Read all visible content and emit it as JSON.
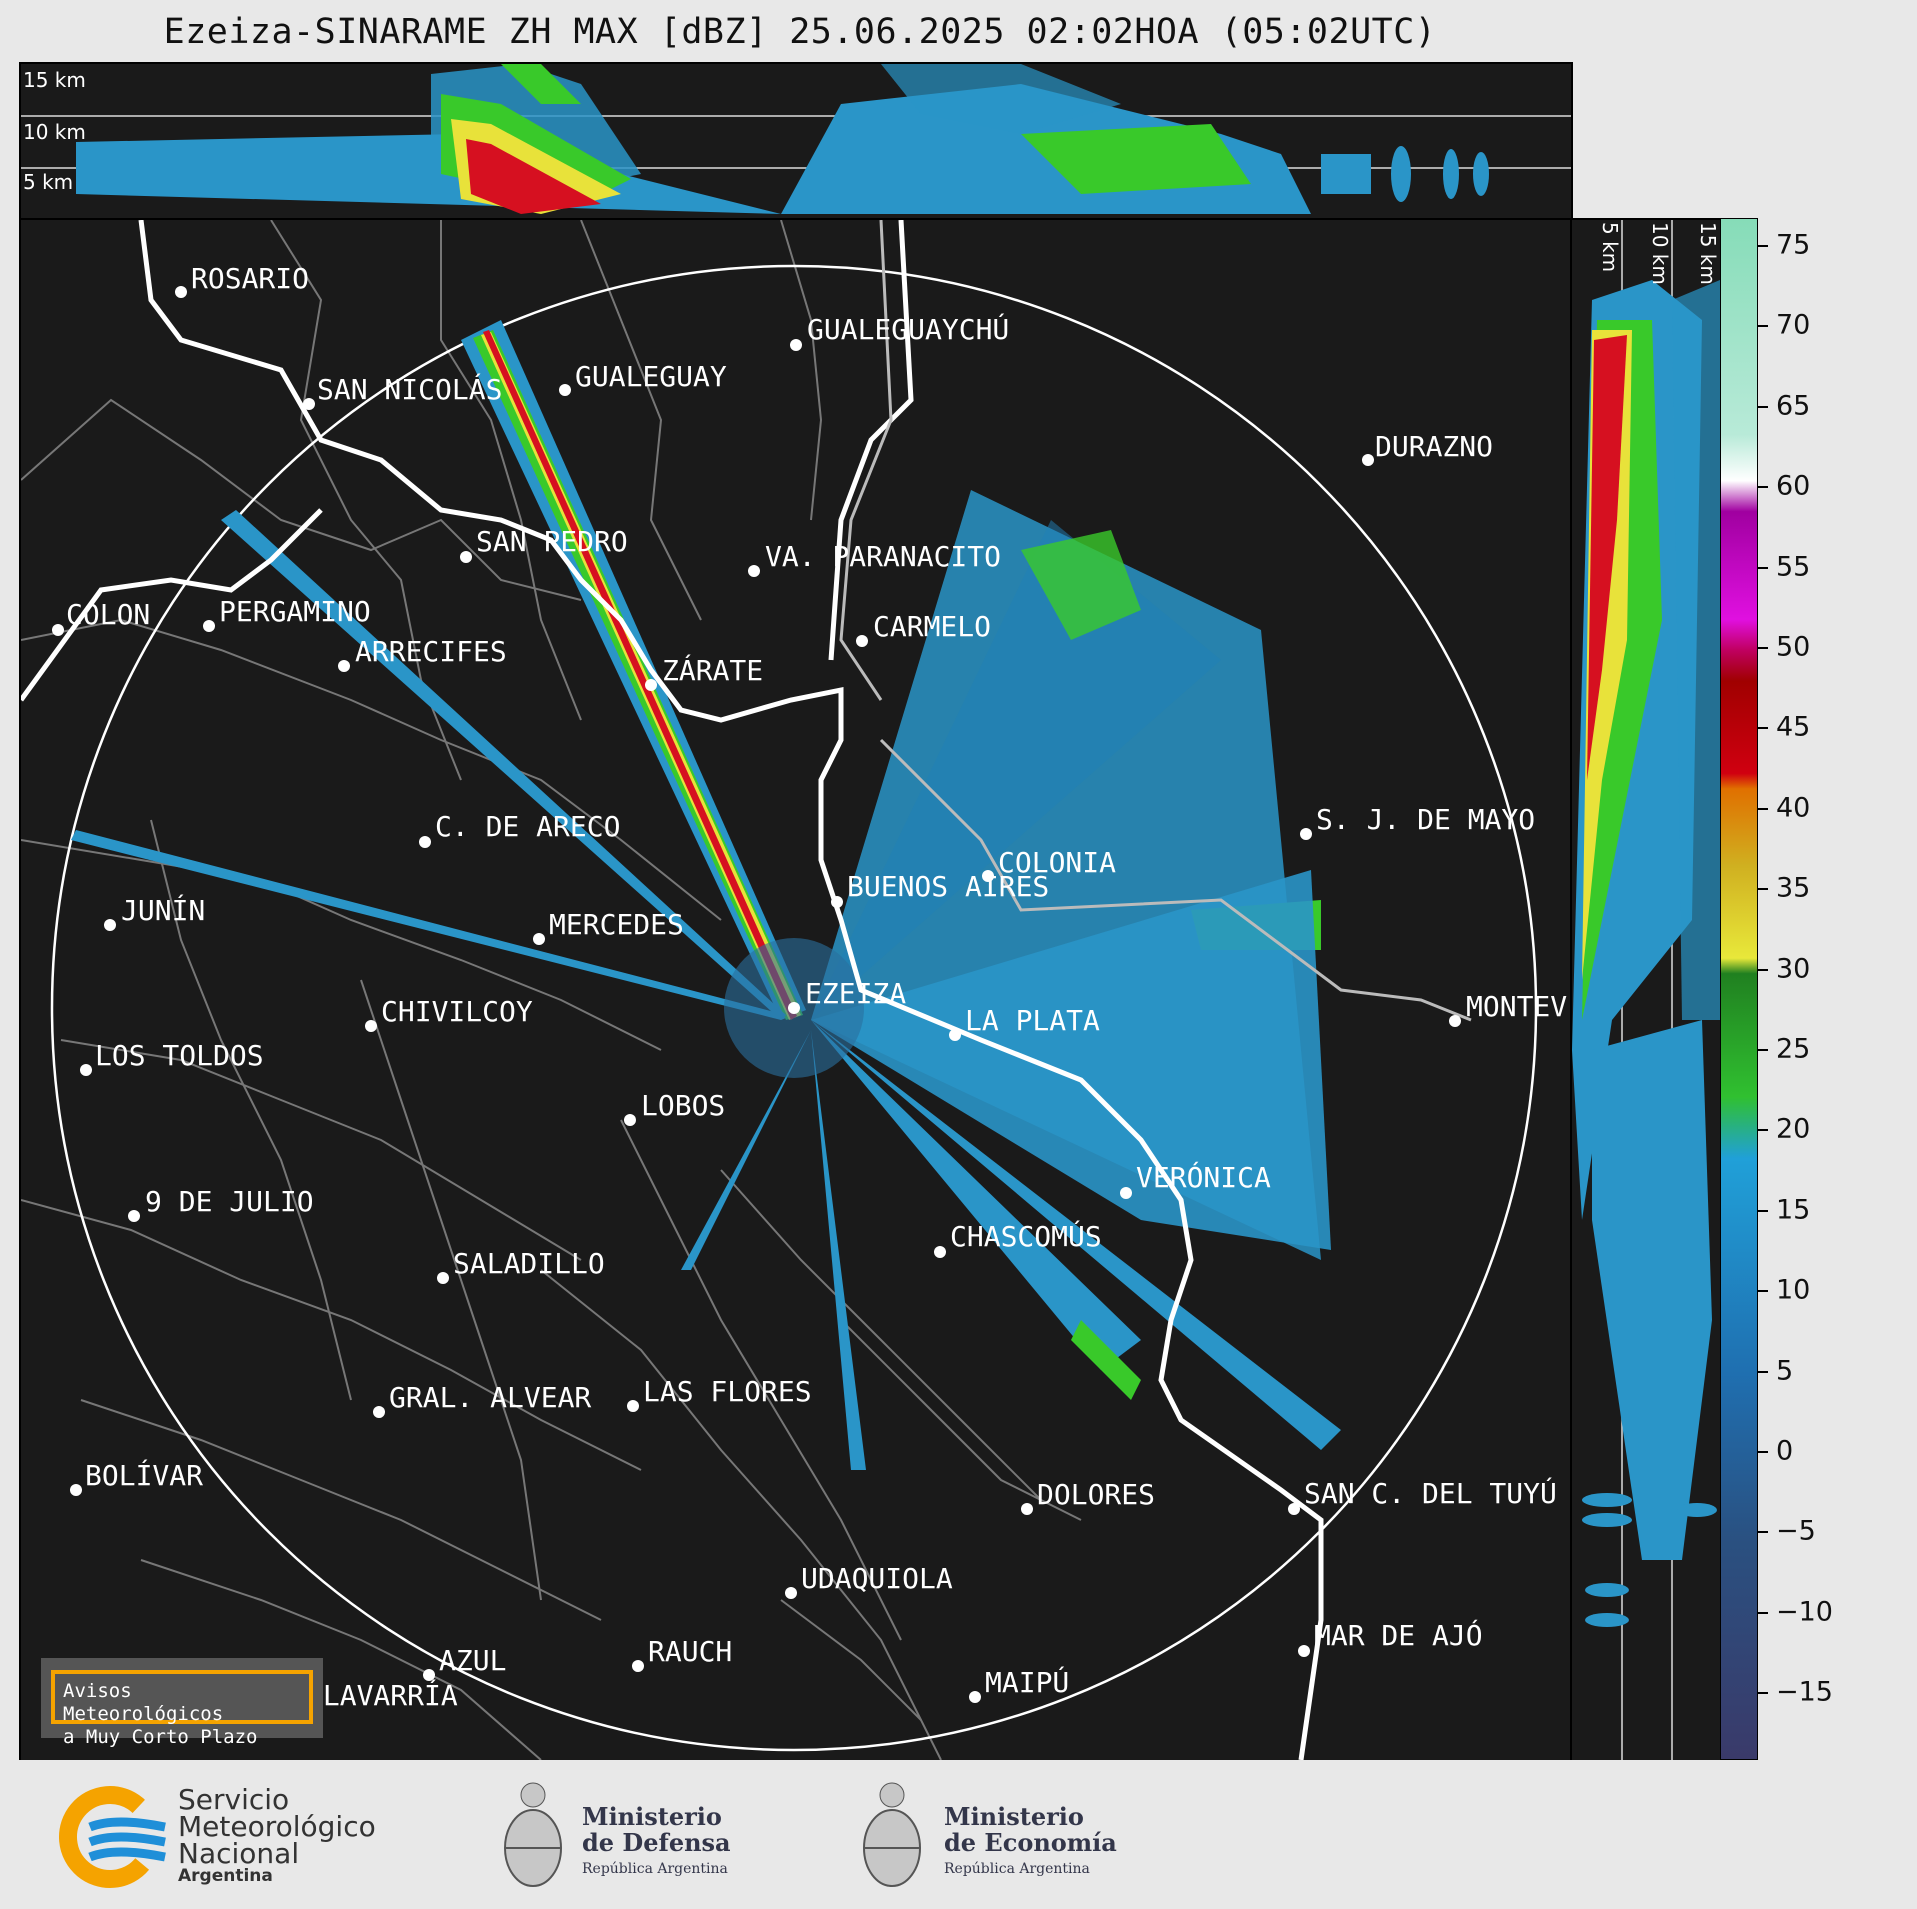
{
  "title": "Ezeiza-SINARAME ZH MAX [dBZ] 25.06.2025 02:02HOA (05:02UTC)",
  "height_labels": [
    "15 km",
    "10 km",
    "5 km"
  ],
  "colorbar": {
    "ticks": [
      "75",
      "70",
      "65",
      "60",
      "55",
      "50",
      "45",
      "40",
      "35",
      "30",
      "25",
      "20",
      "15",
      "10",
      "5",
      "0",
      "−5",
      "−10",
      "−15"
    ]
  },
  "cities": [
    {
      "name": "ROSARIO"
    },
    {
      "name": "GUALEGUAYCHÚ"
    },
    {
      "name": "GUALEGUAY"
    },
    {
      "name": "SAN NICOLÁS"
    },
    {
      "name": "DURAZNO"
    },
    {
      "name": "SAN PEDRO"
    },
    {
      "name": "VA. PARANACITO"
    },
    {
      "name": "COLON"
    },
    {
      "name": "PERGAMINO"
    },
    {
      "name": "CARMELO"
    },
    {
      "name": "ARRECIFES"
    },
    {
      "name": "ZÁRATE"
    },
    {
      "name": "S. J. DE MAYO"
    },
    {
      "name": "C. DE ARECO"
    },
    {
      "name": "COLONIA"
    },
    {
      "name": "JUNÍN"
    },
    {
      "name": "BUENOS AIRES"
    },
    {
      "name": "MERCEDES"
    },
    {
      "name": "EZEIZA"
    },
    {
      "name": "MONTEV"
    },
    {
      "name": "CHIVILCOY"
    },
    {
      "name": "LA PLATA"
    },
    {
      "name": "LOS TOLDOS"
    },
    {
      "name": "LOBOS"
    },
    {
      "name": "VERÓNICA"
    },
    {
      "name": "9 DE JULIO"
    },
    {
      "name": "CHASCOMÚS"
    },
    {
      "name": "SALADILLO"
    },
    {
      "name": "GRAL. ALVEAR"
    },
    {
      "name": "LAS FLORES"
    },
    {
      "name": "BOLÍVAR"
    },
    {
      "name": "DOLORES"
    },
    {
      "name": "SAN C. DEL TUYÚ"
    },
    {
      "name": "UDAQUIOLA"
    },
    {
      "name": "MAR DE AJÓ"
    },
    {
      "name": "RAUCH"
    },
    {
      "name": "AZUL"
    },
    {
      "name": "MAIPÚ"
    },
    {
      "name": "OLAVARRÍA"
    }
  ],
  "warning_box": {
    "line1": "Avisos Meteorológicos",
    "line2": "a Muy Corto Plazo"
  },
  "logos": {
    "smn": {
      "line1": "Servicio",
      "line2": "Meteorológico",
      "line3": "Nacional",
      "line4": "Argentina"
    },
    "defensa": {
      "line1": "Ministerio",
      "line2": "de Defensa",
      "line3": "República Argentina"
    },
    "economia": {
      "line1": "Ministerio",
      "line2": "de Economía",
      "line3": "República Argentina"
    }
  },
  "colors": {
    "background": "#1a1a1a",
    "light_blue": "#2a95c8",
    "green": "#39c92a",
    "yellow": "#e8e23a",
    "red": "#d61020",
    "warning_border": "#f5a300"
  }
}
